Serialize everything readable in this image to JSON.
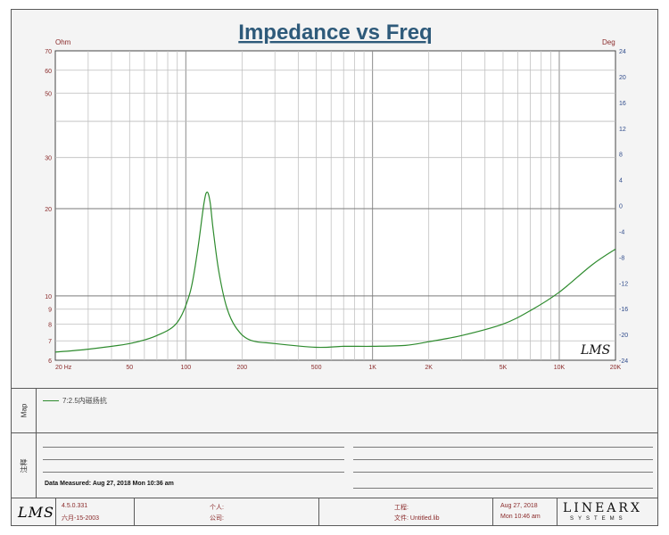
{
  "chart_data": {
    "type": "line",
    "title": "Impedance vs Freq",
    "y_unit": "Ohm",
    "y2_unit": "Deg",
    "x_scale": "log",
    "y_scale": "log",
    "xlim": [
      20,
      20000
    ],
    "ylim": [
      6,
      70
    ],
    "y2lim": [
      -24,
      24
    ],
    "x_tick_labels": [
      {
        "value": 20,
        "label": "20 Hz"
      },
      {
        "value": 50,
        "label": "50"
      },
      {
        "value": 100,
        "label": "100"
      },
      {
        "value": 200,
        "label": "200"
      },
      {
        "value": 500,
        "label": "500"
      },
      {
        "value": 1000,
        "label": "1K"
      },
      {
        "value": 2000,
        "label": "2K"
      },
      {
        "value": 5000,
        "label": "5K"
      },
      {
        "value": 10000,
        "label": "10K"
      },
      {
        "value": 20000,
        "label": "20K"
      }
    ],
    "y_tick_labels": [
      {
        "value": 70,
        "label": "70"
      },
      {
        "value": 60,
        "label": "60"
      },
      {
        "value": 50,
        "label": "50"
      },
      {
        "value": 30,
        "label": "30"
      },
      {
        "value": 20,
        "label": "20"
      },
      {
        "value": 10,
        "label": "10"
      },
      {
        "value": 9,
        "label": "9"
      },
      {
        "value": 8,
        "label": "8"
      },
      {
        "value": 7,
        "label": "7"
      },
      {
        "value": 6,
        "label": "6"
      }
    ],
    "y2_tick_labels": [
      "24",
      "20",
      "16",
      "12",
      "8",
      "4",
      "0",
      "-4",
      "-8",
      "-12",
      "-16",
      "-20",
      "-24"
    ],
    "grid": true,
    "series": [
      {
        "name": "7:2.5内磁扬抗",
        "color": "#2e8b2e",
        "x": [
          20,
          30,
          50,
          70,
          90,
          105,
          115,
          125,
          130,
          135,
          140,
          150,
          165,
          185,
          220,
          300,
          500,
          700,
          1000,
          1500,
          2000,
          3000,
          5000,
          7000,
          10000,
          15000,
          20000
        ],
        "y": [
          6.4,
          6.55,
          6.85,
          7.3,
          8.1,
          10.2,
          14.0,
          20.8,
          22.8,
          21.0,
          17.0,
          12.2,
          9.2,
          7.8,
          7.05,
          6.85,
          6.65,
          6.7,
          6.7,
          6.75,
          6.95,
          7.3,
          8.0,
          8.9,
          10.3,
          12.8,
          14.5
        ]
      }
    ]
  },
  "watermark": "LMS",
  "map_label": "Map",
  "notes_label": "注释",
  "legend_text": "7:2.5内磁扬抗",
  "data_measured": "Data Measured: Aug 27, 2018  Mon  10:36 am",
  "footer": {
    "logo": "LMS",
    "version": "4.5.0.331",
    "version_date": "六月-15-2003",
    "person_label": "个人:",
    "company_label": "公司:",
    "project_label": "工程:",
    "file_label": "文件: Untitled.lib",
    "date": "Aug 27, 2018",
    "time": "Mon 10:46 am",
    "brand": "LINEARX",
    "brand_sub": "SYSTEMS"
  }
}
